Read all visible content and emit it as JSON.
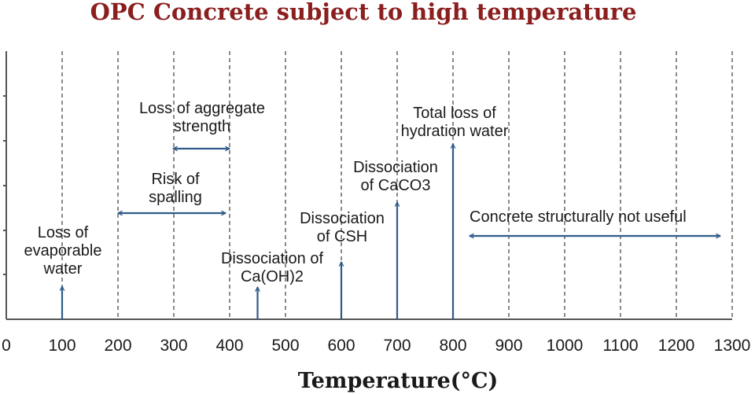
{
  "title": "OPC Concrete subject to high temperature",
  "chart_data": {
    "type": "annotated-timeline",
    "xlabel": "Temperature(°C)",
    "xlim": [
      0,
      1300
    ],
    "xticks": [
      0,
      100,
      200,
      300,
      400,
      500,
      600,
      700,
      800,
      900,
      1000,
      1100,
      1200,
      1300
    ],
    "vertical_gridlines": true,
    "annotations": [
      {
        "id": "evaporable-water",
        "kind": "point",
        "x": 100,
        "lines": [
          "Loss of",
          "evaporable",
          "water"
        ]
      },
      {
        "id": "caoh2",
        "kind": "point",
        "x": 450,
        "lines": [
          "Dissociation of",
          "Ca(OH)2"
        ]
      },
      {
        "id": "csh",
        "kind": "point",
        "x": 600,
        "lines": [
          "Dissociation",
          "of CSH"
        ]
      },
      {
        "id": "caco3",
        "kind": "point",
        "x": 700,
        "lines": [
          "Dissociation",
          "of CaCO3"
        ]
      },
      {
        "id": "hydration-water",
        "kind": "point",
        "x": 800,
        "lines": [
          "Total loss of",
          "hydration water"
        ]
      },
      {
        "id": "aggregate-strength",
        "kind": "range",
        "x": [
          300,
          400
        ],
        "lines": [
          "Loss of aggregate",
          "strength"
        ]
      },
      {
        "id": "spalling",
        "kind": "range",
        "x": [
          200,
          400
        ],
        "lines": [
          "Risk of",
          "spalling"
        ]
      },
      {
        "id": "not-useful",
        "kind": "range",
        "x": [
          800,
          1300
        ],
        "lines": [
          "Concrete structurally not useful"
        ]
      }
    ]
  }
}
